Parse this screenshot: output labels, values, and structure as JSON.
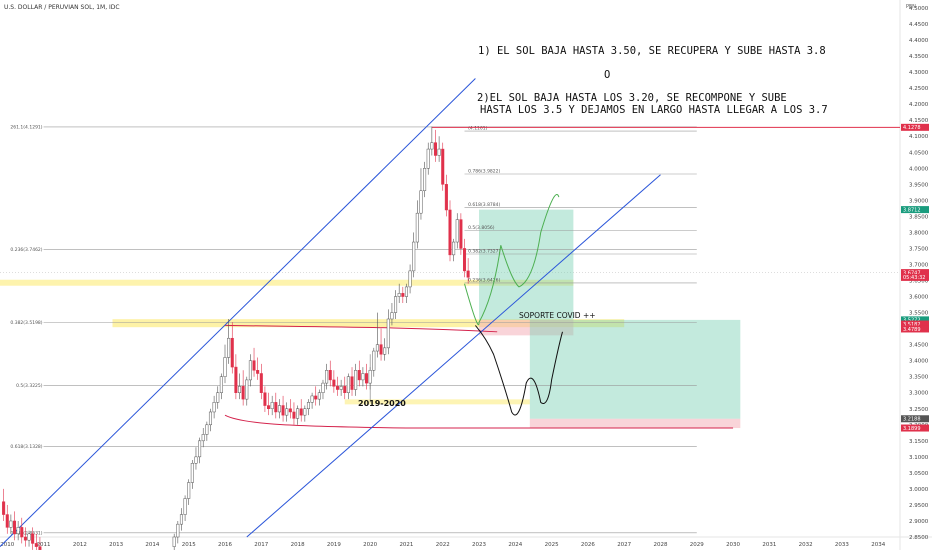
{
  "header": {
    "pair": "U.S. DOLLAR / PERUVIAN SOL, 1M, IDC",
    "currency": "PEN"
  },
  "annotations": {
    "line1": "1) EL SOL BAJA HASTA 3.50, SE RECUPERA Y SUBE HASTA 3.8",
    "or": "O",
    "line2a": "2)EL SOL BAJA HASTA LOS 3.20, SE RECOMPONE Y SUBE",
    "line2b": "HASTA LOS 3.5 Y DEJAMOS EN LARGO HASTA LLEGAR A LOS 3.7",
    "covid": "SOPORTE COVID ++",
    "period": "2019-2020"
  },
  "chart_data": {
    "type": "candlestick",
    "ylim": [
      2.85,
      4.5
    ],
    "xlim": [
      2009.8,
      2034.6
    ],
    "yticks": [
      "4.5000",
      "4.4500",
      "4.4000",
      "4.3500",
      "4.3000",
      "4.2500",
      "4.2000",
      "4.1500",
      "4.1000",
      "4.0500",
      "4.0000",
      "3.9500",
      "3.9000",
      "3.8500",
      "3.8000",
      "3.7500",
      "3.7000",
      "3.6500",
      "3.6000",
      "3.5500",
      "3.5000",
      "3.4500",
      "3.4000",
      "3.3500",
      "3.3000",
      "3.2500",
      "3.2000",
      "3.1500",
      "3.1000",
      "3.0500",
      "3.0000",
      "2.9500",
      "2.9000",
      "2.8500"
    ],
    "ytick_values": [
      4.5,
      4.45,
      4.4,
      4.35,
      4.3,
      4.25,
      4.2,
      4.15,
      4.1,
      4.05,
      4.0,
      3.95,
      3.9,
      3.85,
      3.8,
      3.75,
      3.7,
      3.65,
      3.6,
      3.55,
      3.5,
      3.45,
      3.4,
      3.35,
      3.3,
      3.25,
      3.2,
      3.15,
      3.1,
      3.05,
      3.0,
      2.95,
      2.9,
      2.85
    ],
    "xticks": [
      "2010",
      "2011",
      "2012",
      "2013",
      "2014",
      "2015",
      "2016",
      "2017",
      "2018",
      "2019",
      "2020",
      "2021",
      "2022",
      "2023",
      "2024",
      "2025",
      "2026",
      "2027",
      "2028",
      "2029",
      "2030",
      "2031",
      "2032",
      "2033",
      "2034"
    ],
    "fib_lines_left": [
      {
        "label": "261.1(4.1291)",
        "value": 4.1291,
        "x0": 2011.0
      },
      {
        "label": "0.236(3.7462)",
        "value": 3.7462,
        "x0": 2011.0
      },
      {
        "label": "0.382(3.5198)",
        "value": 3.5198,
        "x0": 2011.0
      },
      {
        "label": "0.5(3.3225)",
        "value": 3.3225,
        "x0": 2011.0
      },
      {
        "label": "0.618(3.1328)",
        "value": 3.1328,
        "x0": 2011.0
      },
      {
        "label": "0.786(2.8631)",
        "value": 2.8631,
        "x0": 2011.0
      }
    ],
    "fib_lines_right": [
      {
        "label": "0.786(3.9822)",
        "value": 3.9822
      },
      {
        "label": "0.618(3.8784)",
        "value": 3.8784
      },
      {
        "label": "0.5(3.8056)",
        "value": 3.8056
      },
      {
        "label": "0.382(3.7327)",
        "value": 3.7327
      },
      {
        "label": "0.236(3.6426)",
        "value": 3.6426
      },
      {
        "label": "(4.1161)",
        "value": 4.1161
      }
    ],
    "price_badges": [
      {
        "value": "4.1278",
        "y": 4.1278,
        "color": "#e0314b"
      },
      {
        "value": "3.8712",
        "y": 3.8712,
        "color": "#1a9c7e"
      },
      {
        "value": "3.6747",
        "y": 3.6747,
        "color": "#e0314b"
      },
      {
        "value": "05:43:32",
        "y": 3.6597,
        "color": "#e0314b"
      },
      {
        "value": "3.5272",
        "y": 3.5272,
        "color": "#1a9c7e"
      },
      {
        "value": "3.5182",
        "y": 3.5142,
        "color": "#e0314b"
      },
      {
        "value": "3.4789",
        "y": 3.4989,
        "color": "#e0314b"
      },
      {
        "value": "3.2188",
        "y": 3.2188,
        "color": "#555555"
      },
      {
        "value": "3.1899",
        "y": 3.1899,
        "color": "#e0314b"
      }
    ],
    "key_levels": {
      "high_2022": 4.1278,
      "current": 3.6747,
      "covid_support": 3.5198,
      "target_1": 3.8,
      "target_2": 3.7,
      "low_target": 3.2
    },
    "candles": [
      {
        "t": 2009.9,
        "o": 2.96,
        "h": 3.0,
        "c": 2.92
      },
      {
        "t": 2010.0,
        "o": 2.92,
        "h": 2.95,
        "c": 2.88
      },
      {
        "t": 2010.1,
        "o": 2.88,
        "h": 2.92,
        "c": 2.9
      },
      {
        "t": 2010.2,
        "o": 2.9,
        "h": 2.93,
        "c": 2.86
      },
      {
        "t": 2010.3,
        "o": 2.86,
        "h": 2.9,
        "c": 2.88
      },
      {
        "t": 2010.4,
        "o": 2.88,
        "h": 2.91,
        "c": 2.85
      },
      {
        "t": 2010.5,
        "o": 2.85,
        "h": 2.88,
        "c": 2.84
      },
      {
        "t": 2010.6,
        "o": 2.84,
        "h": 2.87,
        "c": 2.86
      },
      {
        "t": 2010.7,
        "o": 2.86,
        "h": 2.88,
        "c": 2.83
      },
      {
        "t": 2010.8,
        "o": 2.83,
        "h": 2.86,
        "c": 2.82
      },
      {
        "t": 2010.9,
        "o": 2.82,
        "h": 2.85,
        "c": 2.81
      },
      {
        "t": 2014.6,
        "o": 2.82,
        "h": 2.86,
        "c": 2.85
      },
      {
        "t": 2014.7,
        "o": 2.85,
        "h": 2.9,
        "c": 2.89
      },
      {
        "t": 2014.8,
        "o": 2.89,
        "h": 2.94,
        "c": 2.92
      },
      {
        "t": 2014.9,
        "o": 2.92,
        "h": 2.98,
        "c": 2.97
      },
      {
        "t": 2015.0,
        "o": 2.97,
        "h": 3.03,
        "c": 3.02
      },
      {
        "t": 2015.1,
        "o": 3.02,
        "h": 3.09,
        "c": 3.08
      },
      {
        "t": 2015.2,
        "o": 3.08,
        "h": 3.13,
        "c": 3.1
      },
      {
        "t": 2015.3,
        "o": 3.1,
        "h": 3.16,
        "c": 3.15
      },
      {
        "t": 2015.4,
        "o": 3.15,
        "h": 3.19,
        "c": 3.17
      },
      {
        "t": 2015.5,
        "o": 3.17,
        "h": 3.21,
        "c": 3.2
      },
      {
        "t": 2015.6,
        "o": 3.2,
        "h": 3.25,
        "c": 3.24
      },
      {
        "t": 2015.7,
        "o": 3.24,
        "h": 3.29,
        "c": 3.27
      },
      {
        "t": 2015.8,
        "o": 3.27,
        "h": 3.32,
        "c": 3.3
      },
      {
        "t": 2015.9,
        "o": 3.3,
        "h": 3.36,
        "c": 3.35
      },
      {
        "t": 2016.0,
        "o": 3.35,
        "h": 3.45,
        "c": 3.41
      },
      {
        "t": 2016.1,
        "o": 3.41,
        "h": 3.53,
        "c": 3.47
      },
      {
        "t": 2016.2,
        "o": 3.47,
        "h": 3.52,
        "c": 3.38
      },
      {
        "t": 2016.3,
        "o": 3.38,
        "h": 3.42,
        "c": 3.3
      },
      {
        "t": 2016.4,
        "o": 3.3,
        "h": 3.36,
        "c": 3.32
      },
      {
        "t": 2016.5,
        "o": 3.32,
        "h": 3.37,
        "c": 3.28
      },
      {
        "t": 2016.6,
        "o": 3.28,
        "h": 3.35,
        "c": 3.34
      },
      {
        "t": 2016.7,
        "o": 3.34,
        "h": 3.42,
        "c": 3.4
      },
      {
        "t": 2016.8,
        "o": 3.4,
        "h": 3.44,
        "c": 3.37
      },
      {
        "t": 2016.9,
        "o": 3.37,
        "h": 3.41,
        "c": 3.36
      },
      {
        "t": 2017.0,
        "o": 3.36,
        "h": 3.39,
        "c": 3.3
      },
      {
        "t": 2017.1,
        "o": 3.3,
        "h": 3.32,
        "c": 3.26
      },
      {
        "t": 2017.2,
        "o": 3.26,
        "h": 3.3,
        "c": 3.25
      },
      {
        "t": 2017.3,
        "o": 3.25,
        "h": 3.29,
        "c": 3.27
      },
      {
        "t": 2017.4,
        "o": 3.27,
        "h": 3.3,
        "c": 3.24
      },
      {
        "t": 2017.5,
        "o": 3.24,
        "h": 3.28,
        "c": 3.26
      },
      {
        "t": 2017.6,
        "o": 3.26,
        "h": 3.29,
        "c": 3.23
      },
      {
        "t": 2017.7,
        "o": 3.23,
        "h": 3.27,
        "c": 3.25
      },
      {
        "t": 2017.8,
        "o": 3.25,
        "h": 3.28,
        "c": 3.24
      },
      {
        "t": 2017.9,
        "o": 3.24,
        "h": 3.27,
        "c": 3.22
      },
      {
        "t": 2018.0,
        "o": 3.22,
        "h": 3.26,
        "c": 3.25
      },
      {
        "t": 2018.1,
        "o": 3.25,
        "h": 3.28,
        "c": 3.23
      },
      {
        "t": 2018.2,
        "o": 3.23,
        "h": 3.26,
        "c": 3.25
      },
      {
        "t": 2018.3,
        "o": 3.25,
        "h": 3.28,
        "c": 3.27
      },
      {
        "t": 2018.4,
        "o": 3.27,
        "h": 3.3,
        "c": 3.29
      },
      {
        "t": 2018.5,
        "o": 3.29,
        "h": 3.32,
        "c": 3.28
      },
      {
        "t": 2018.6,
        "o": 3.28,
        "h": 3.31,
        "c": 3.3
      },
      {
        "t": 2018.7,
        "o": 3.3,
        "h": 3.34,
        "c": 3.33
      },
      {
        "t": 2018.8,
        "o": 3.33,
        "h": 3.39,
        "c": 3.37
      },
      {
        "t": 2018.9,
        "o": 3.37,
        "h": 3.4,
        "c": 3.34
      },
      {
        "t": 2019.0,
        "o": 3.34,
        "h": 3.37,
        "c": 3.32
      },
      {
        "t": 2019.1,
        "o": 3.32,
        "h": 3.35,
        "c": 3.31
      },
      {
        "t": 2019.2,
        "o": 3.31,
        "h": 3.34,
        "c": 3.32
      },
      {
        "t": 2019.3,
        "o": 3.32,
        "h": 3.35,
        "c": 3.3
      },
      {
        "t": 2019.4,
        "o": 3.3,
        "h": 3.36,
        "c": 3.35
      },
      {
        "t": 2019.5,
        "o": 3.35,
        "h": 3.38,
        "c": 3.31
      },
      {
        "t": 2019.6,
        "o": 3.31,
        "h": 3.39,
        "c": 3.37
      },
      {
        "t": 2019.7,
        "o": 3.37,
        "h": 3.4,
        "c": 3.34
      },
      {
        "t": 2019.8,
        "o": 3.34,
        "h": 3.38,
        "c": 3.36
      },
      {
        "t": 2019.9,
        "o": 3.36,
        "h": 3.39,
        "c": 3.33
      },
      {
        "t": 2020.0,
        "o": 3.33,
        "h": 3.38,
        "c": 3.37
      },
      {
        "t": 2020.1,
        "o": 3.37,
        "h": 3.44,
        "c": 3.43
      },
      {
        "t": 2020.2,
        "o": 3.43,
        "h": 3.55,
        "c": 3.45
      },
      {
        "t": 2020.3,
        "o": 3.45,
        "h": 3.5,
        "c": 3.42
      },
      {
        "t": 2020.4,
        "o": 3.42,
        "h": 3.47,
        "c": 3.44
      },
      {
        "t": 2020.5,
        "o": 3.44,
        "h": 3.56,
        "c": 3.53
      },
      {
        "t": 2020.6,
        "o": 3.53,
        "h": 3.58,
        "c": 3.55
      },
      {
        "t": 2020.7,
        "o": 3.55,
        "h": 3.62,
        "c": 3.6
      },
      {
        "t": 2020.8,
        "o": 3.6,
        "h": 3.64,
        "c": 3.61
      },
      {
        "t": 2020.9,
        "o": 3.61,
        "h": 3.63,
        "c": 3.6
      },
      {
        "t": 2021.0,
        "o": 3.6,
        "h": 3.64,
        "c": 3.63
      },
      {
        "t": 2021.1,
        "o": 3.63,
        "h": 3.7,
        "c": 3.68
      },
      {
        "t": 2021.2,
        "o": 3.68,
        "h": 3.8,
        "c": 3.77
      },
      {
        "t": 2021.3,
        "o": 3.77,
        "h": 3.9,
        "c": 3.86
      },
      {
        "t": 2021.4,
        "o": 3.86,
        "h": 4.0,
        "c": 3.93
      },
      {
        "t": 2021.5,
        "o": 3.93,
        "h": 4.02,
        "c": 4.0
      },
      {
        "t": 2021.6,
        "o": 4.0,
        "h": 4.08,
        "c": 4.06
      },
      {
        "t": 2021.7,
        "o": 4.06,
        "h": 4.13,
        "c": 4.08
      },
      {
        "t": 2021.8,
        "o": 4.08,
        "h": 4.12,
        "c": 4.04
      },
      {
        "t": 2021.9,
        "o": 4.04,
        "h": 4.1,
        "c": 4.06
      },
      {
        "t": 2022.0,
        "o": 4.06,
        "h": 4.08,
        "c": 3.95
      },
      {
        "t": 2022.1,
        "o": 3.95,
        "h": 3.98,
        "c": 3.87
      },
      {
        "t": 2022.2,
        "o": 3.87,
        "h": 3.9,
        "c": 3.73
      },
      {
        "t": 2022.3,
        "o": 3.73,
        "h": 3.78,
        "c": 3.77
      },
      {
        "t": 2022.4,
        "o": 3.77,
        "h": 3.86,
        "c": 3.84
      },
      {
        "t": 2022.5,
        "o": 3.84,
        "h": 3.86,
        "c": 3.75
      },
      {
        "t": 2022.6,
        "o": 3.75,
        "h": 3.78,
        "c": 3.68
      },
      {
        "t": 2022.7,
        "o": 3.68,
        "h": 3.72,
        "c": 3.66
      }
    ]
  }
}
